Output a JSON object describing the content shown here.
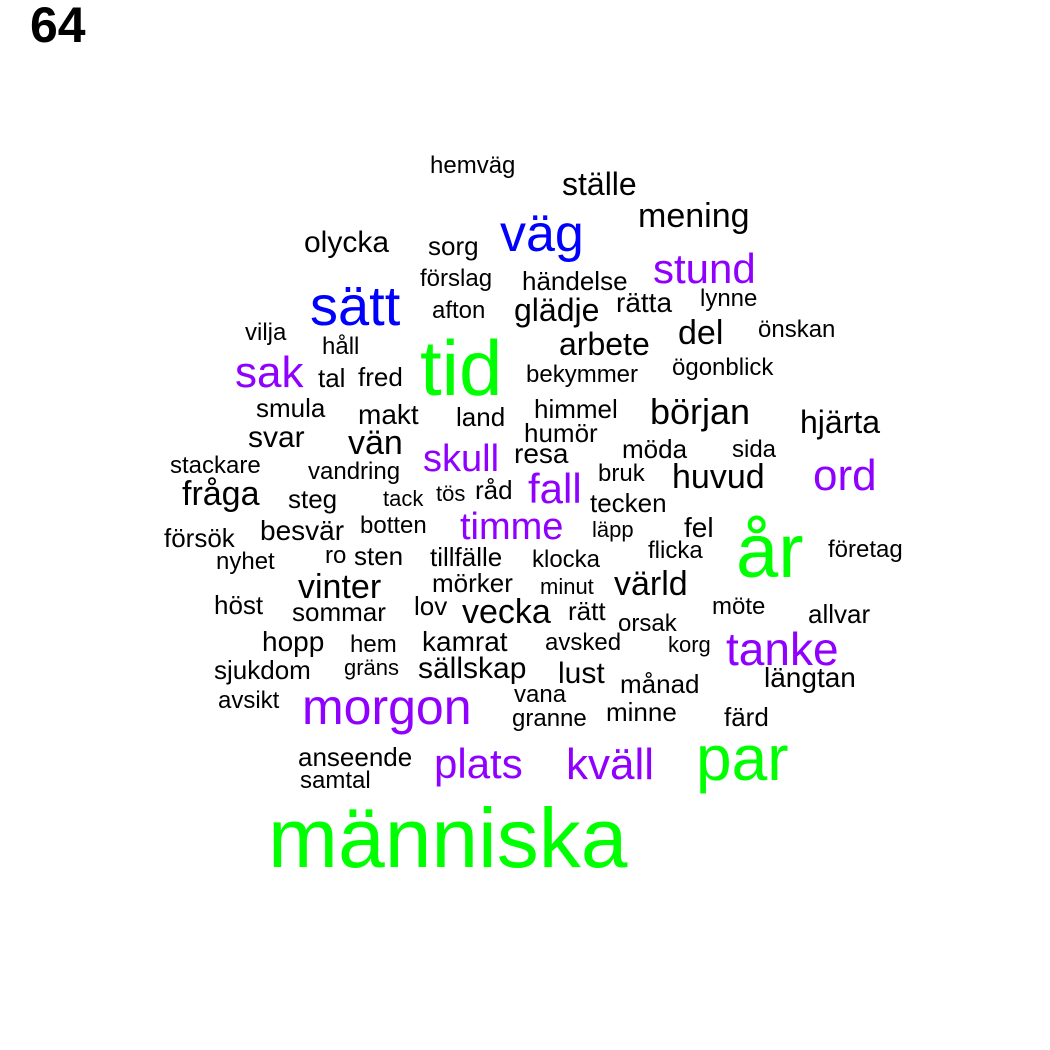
{
  "panel_number": "64",
  "colors": {
    "green": "#00ff00",
    "blue": "#0000ff",
    "purple": "#8f00ff",
    "black": "#000000"
  },
  "words": [
    {
      "text": "människa",
      "color": "green"
    },
    {
      "text": "år",
      "color": "green"
    },
    {
      "text": "tid",
      "color": "green"
    },
    {
      "text": "par",
      "color": "green"
    },
    {
      "text": "sätt",
      "color": "blue"
    },
    {
      "text": "väg",
      "color": "blue"
    },
    {
      "text": "stund",
      "color": "purple"
    },
    {
      "text": "sak",
      "color": "purple"
    },
    {
      "text": "ord",
      "color": "purple"
    },
    {
      "text": "skull",
      "color": "purple"
    },
    {
      "text": "fall",
      "color": "purple"
    },
    {
      "text": "timme",
      "color": "purple"
    },
    {
      "text": "tanke",
      "color": "purple"
    },
    {
      "text": "morgon",
      "color": "purple"
    },
    {
      "text": "plats",
      "color": "purple"
    },
    {
      "text": "kväll",
      "color": "purple"
    },
    {
      "text": "hemväg",
      "color": "black"
    },
    {
      "text": "ställe",
      "color": "black"
    },
    {
      "text": "mening",
      "color": "black"
    },
    {
      "text": "olycka",
      "color": "black"
    },
    {
      "text": "sorg",
      "color": "black"
    },
    {
      "text": "förslag",
      "color": "black"
    },
    {
      "text": "händelse",
      "color": "black"
    },
    {
      "text": "rätta",
      "color": "black"
    },
    {
      "text": "lynne",
      "color": "black"
    },
    {
      "text": "afton",
      "color": "black"
    },
    {
      "text": "glädje",
      "color": "black"
    },
    {
      "text": "vilja",
      "color": "black"
    },
    {
      "text": "del",
      "color": "black"
    },
    {
      "text": "önskan",
      "color": "black"
    },
    {
      "text": "håll",
      "color": "black"
    },
    {
      "text": "arbete",
      "color": "black"
    },
    {
      "text": "tal",
      "color": "black"
    },
    {
      "text": "fred",
      "color": "black"
    },
    {
      "text": "bekymmer",
      "color": "black"
    },
    {
      "text": "ögonblick",
      "color": "black"
    },
    {
      "text": "smula",
      "color": "black"
    },
    {
      "text": "makt",
      "color": "black"
    },
    {
      "text": "land",
      "color": "black"
    },
    {
      "text": "himmel",
      "color": "black"
    },
    {
      "text": "början",
      "color": "black"
    },
    {
      "text": "hjärta",
      "color": "black"
    },
    {
      "text": "svar",
      "color": "black"
    },
    {
      "text": "vän",
      "color": "black"
    },
    {
      "text": "humör",
      "color": "black"
    },
    {
      "text": "möda",
      "color": "black"
    },
    {
      "text": "sida",
      "color": "black"
    },
    {
      "text": "resa",
      "color": "black"
    },
    {
      "text": "stackare",
      "color": "black"
    },
    {
      "text": "vandring",
      "color": "black"
    },
    {
      "text": "bruk",
      "color": "black"
    },
    {
      "text": "huvud",
      "color": "black"
    },
    {
      "text": "fråga",
      "color": "black"
    },
    {
      "text": "steg",
      "color": "black"
    },
    {
      "text": "tack",
      "color": "black"
    },
    {
      "text": "tös",
      "color": "black"
    },
    {
      "text": "råd",
      "color": "black"
    },
    {
      "text": "tecken",
      "color": "black"
    },
    {
      "text": "försök",
      "color": "black"
    },
    {
      "text": "besvär",
      "color": "black"
    },
    {
      "text": "botten",
      "color": "black"
    },
    {
      "text": "läpp",
      "color": "black"
    },
    {
      "text": "fel",
      "color": "black"
    },
    {
      "text": "flicka",
      "color": "black"
    },
    {
      "text": "företag",
      "color": "black"
    },
    {
      "text": "nyhet",
      "color": "black"
    },
    {
      "text": "ro",
      "color": "black"
    },
    {
      "text": "sten",
      "color": "black"
    },
    {
      "text": "tillfälle",
      "color": "black"
    },
    {
      "text": "klocka",
      "color": "black"
    },
    {
      "text": "vinter",
      "color": "black"
    },
    {
      "text": "mörker",
      "color": "black"
    },
    {
      "text": "minut",
      "color": "black"
    },
    {
      "text": "värld",
      "color": "black"
    },
    {
      "text": "höst",
      "color": "black"
    },
    {
      "text": "sommar",
      "color": "black"
    },
    {
      "text": "lov",
      "color": "black"
    },
    {
      "text": "vecka",
      "color": "black"
    },
    {
      "text": "rätt",
      "color": "black"
    },
    {
      "text": "möte",
      "color": "black"
    },
    {
      "text": "allvar",
      "color": "black"
    },
    {
      "text": "orsak",
      "color": "black"
    },
    {
      "text": "hopp",
      "color": "black"
    },
    {
      "text": "hem",
      "color": "black"
    },
    {
      "text": "kamrat",
      "color": "black"
    },
    {
      "text": "avsked",
      "color": "black"
    },
    {
      "text": "korg",
      "color": "black"
    },
    {
      "text": "sjukdom",
      "color": "black"
    },
    {
      "text": "gräns",
      "color": "black"
    },
    {
      "text": "sällskap",
      "color": "black"
    },
    {
      "text": "lust",
      "color": "black"
    },
    {
      "text": "månad",
      "color": "black"
    },
    {
      "text": "längtan",
      "color": "black"
    },
    {
      "text": "avsikt",
      "color": "black"
    },
    {
      "text": "vana",
      "color": "black"
    },
    {
      "text": "granne",
      "color": "black"
    },
    {
      "text": "minne",
      "color": "black"
    },
    {
      "text": "färd",
      "color": "black"
    },
    {
      "text": "anseende",
      "color": "black"
    },
    {
      "text": "samtal",
      "color": "black"
    }
  ]
}
